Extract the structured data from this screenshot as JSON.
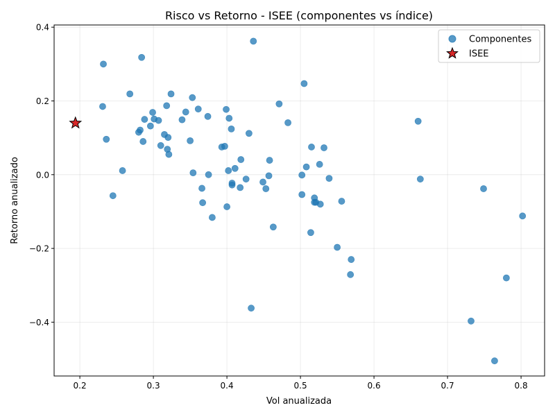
{
  "chart_data": {
    "type": "scatter",
    "title": "Risco vs Retorno - ISEE (componentes vs índice)",
    "xlabel": "Vol anualizada",
    "ylabel": "Retorno anualizado",
    "xlim": [
      0.165,
      0.832
    ],
    "ylim": [
      -0.546,
      0.406
    ],
    "xticks": [
      0.2,
      0.3,
      0.4,
      0.5,
      0.6,
      0.7,
      0.8
    ],
    "xtick_labels": [
      "0.2",
      "0.3",
      "0.4",
      "0.5",
      "0.6",
      "0.7",
      "0.8"
    ],
    "yticks": [
      -0.4,
      -0.2,
      0.0,
      0.2,
      0.4
    ],
    "ytick_labels": [
      "−0.4",
      "−0.2",
      "0.0",
      "0.2",
      "0.4"
    ],
    "grid": true,
    "legend_position": "top-right",
    "series": [
      {
        "name": "Componentes",
        "marker": "circle",
        "color": "#1f77b4",
        "points": [
          [
            0.232,
            0.3
          ],
          [
            0.284,
            0.318
          ],
          [
            0.268,
            0.219
          ],
          [
            0.231,
            0.185
          ],
          [
            0.236,
            0.096
          ],
          [
            0.258,
            0.011
          ],
          [
            0.245,
            -0.057
          ],
          [
            0.282,
            0.121
          ],
          [
            0.28,
            0.115
          ],
          [
            0.286,
            0.09
          ],
          [
            0.288,
            0.15
          ],
          [
            0.296,
            0.132
          ],
          [
            0.299,
            0.169
          ],
          [
            0.301,
            0.151
          ],
          [
            0.307,
            0.147
          ],
          [
            0.31,
            0.079
          ],
          [
            0.315,
            0.109
          ],
          [
            0.318,
            0.187
          ],
          [
            0.319,
            0.069
          ],
          [
            0.32,
            0.101
          ],
          [
            0.321,
            0.055
          ],
          [
            0.324,
            0.219
          ],
          [
            0.339,
            0.149
          ],
          [
            0.344,
            0.17
          ],
          [
            0.35,
            0.092
          ],
          [
            0.353,
            0.209
          ],
          [
            0.354,
            0.005
          ],
          [
            0.361,
            0.178
          ],
          [
            0.366,
            -0.037
          ],
          [
            0.367,
            -0.076
          ],
          [
            0.374,
            0.158
          ],
          [
            0.375,
            0.0
          ],
          [
            0.38,
            -0.116
          ],
          [
            0.393,
            0.075
          ],
          [
            0.397,
            0.077
          ],
          [
            0.399,
            0.177
          ],
          [
            0.4,
            -0.087
          ],
          [
            0.402,
            0.011
          ],
          [
            0.403,
            0.153
          ],
          [
            0.406,
            0.124
          ],
          [
            0.407,
            -0.023
          ],
          [
            0.407,
            -0.028
          ],
          [
            0.411,
            0.017
          ],
          [
            0.418,
            -0.035
          ],
          [
            0.419,
            0.041
          ],
          [
            0.426,
            -0.012
          ],
          [
            0.43,
            0.112
          ],
          [
            0.433,
            -0.362
          ],
          [
            0.436,
            0.362
          ],
          [
            0.449,
            -0.02
          ],
          [
            0.453,
            -0.038
          ],
          [
            0.457,
            -0.003
          ],
          [
            0.458,
            0.039
          ],
          [
            0.463,
            -0.142
          ],
          [
            0.471,
            0.192
          ],
          [
            0.483,
            0.141
          ],
          [
            0.502,
            -0.001
          ],
          [
            0.502,
            -0.054
          ],
          [
            0.505,
            0.247
          ],
          [
            0.508,
            0.021
          ],
          [
            0.514,
            -0.157
          ],
          [
            0.515,
            0.075
          ],
          [
            0.519,
            -0.063
          ],
          [
            0.519,
            -0.075
          ],
          [
            0.521,
            -0.075
          ],
          [
            0.526,
            0.028
          ],
          [
            0.527,
            -0.08
          ],
          [
            0.532,
            0.073
          ],
          [
            0.539,
            -0.01
          ],
          [
            0.55,
            -0.197
          ],
          [
            0.556,
            -0.072
          ],
          [
            0.568,
            -0.271
          ],
          [
            0.569,
            -0.23
          ],
          [
            0.66,
            0.145
          ],
          [
            0.663,
            -0.012
          ],
          [
            0.732,
            -0.397
          ],
          [
            0.749,
            -0.038
          ],
          [
            0.764,
            -0.505
          ],
          [
            0.78,
            -0.28
          ],
          [
            0.802,
            -0.112
          ]
        ]
      },
      {
        "name": "ISEE",
        "marker": "star",
        "color": "#d62728",
        "points": [
          [
            0.194,
            0.14
          ]
        ]
      }
    ]
  }
}
